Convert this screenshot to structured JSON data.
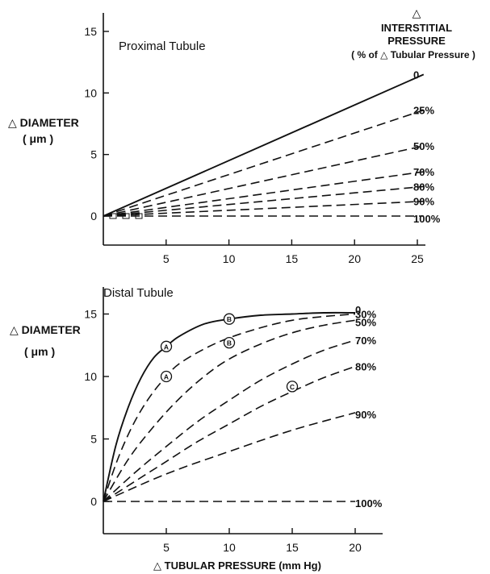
{
  "chart_data": [
    {
      "type": "line",
      "title": "Proximal Tubule",
      "ylabel_line1": "△ DIAMETER",
      "ylabel_line2": "( μm )",
      "xlabel": "",
      "xlim": [
        0,
        26
      ],
      "ylim": [
        0,
        16
      ],
      "x_ticks": [
        5,
        10,
        15,
        20,
        25
      ],
      "y_ticks": [
        0,
        5,
        10,
        15
      ],
      "grid": false,
      "legend_title": [
        "△",
        "INTERSTITIAL",
        "PRESSURE",
        "( % of △ Tubular Pressure )"
      ],
      "series": [
        {
          "name": "0",
          "style": "solid",
          "x": [
            0,
            25.5
          ],
          "y": [
            0,
            11.5
          ]
        },
        {
          "name": "25%",
          "style": "dashed",
          "x": [
            0,
            25.5
          ],
          "y": [
            0,
            8.6
          ]
        },
        {
          "name": "50%",
          "style": "dashed",
          "x": [
            0,
            25.5
          ],
          "y": [
            0,
            5.7
          ]
        },
        {
          "name": "70%",
          "style": "dashed",
          "x": [
            0,
            25.5
          ],
          "y": [
            0,
            3.6
          ]
        },
        {
          "name": "80%",
          "style": "dashed",
          "x": [
            0,
            25.5
          ],
          "y": [
            0,
            2.4
          ]
        },
        {
          "name": "90%",
          "style": "dashed",
          "x": [
            0,
            25.5
          ],
          "y": [
            0,
            1.2
          ]
        },
        {
          "name": "100%",
          "style": "dashed",
          "x": [
            0,
            25.5
          ],
          "y": [
            0,
            0
          ]
        }
      ]
    },
    {
      "type": "line",
      "title": "Distal Tubule",
      "ylabel_line1": "△ DIAMETER",
      "ylabel_line2": "( μm )",
      "xlabel": "△ TUBULAR PRESSURE (mm Hg)",
      "xlim": [
        0,
        22
      ],
      "ylim": [
        0,
        17
      ],
      "x_ticks": [
        5,
        10,
        15,
        20
      ],
      "y_ticks": [
        0,
        5,
        10,
        15
      ],
      "grid": false,
      "series": [
        {
          "name": "0",
          "style": "solid",
          "x": [
            0,
            1,
            2,
            3,
            4,
            5,
            6,
            8,
            10,
            12.5,
            15,
            17.5,
            20
          ],
          "y": [
            0,
            4.5,
            7.6,
            9.9,
            11.5,
            12.4,
            13.2,
            14.2,
            14.6,
            14.9,
            15.0,
            15.1,
            15.1
          ]
        },
        {
          "name": "30%",
          "style": "dashed",
          "x": [
            0,
            1,
            2,
            3,
            4,
            5,
            6,
            8,
            10,
            12.5,
            15,
            17.5,
            20
          ],
          "y": [
            0,
            3.0,
            5.4,
            7.3,
            8.8,
            10.0,
            11.0,
            12.2,
            13.1,
            13.9,
            14.5,
            14.8,
            15.0
          ]
        },
        {
          "name": "50%",
          "style": "dashed",
          "x": [
            0,
            2,
            4,
            6,
            8,
            10,
            12.5,
            15,
            17.5,
            20
          ],
          "y": [
            0,
            3.4,
            6.0,
            8.2,
            10.0,
            11.4,
            12.6,
            13.5,
            14.1,
            14.5
          ]
        },
        {
          "name": "70%",
          "style": "dashed",
          "x": [
            0,
            2.5,
            5,
            7.5,
            10,
            12.5,
            15,
            17.5,
            20
          ],
          "y": [
            0,
            2.3,
            4.4,
            6.4,
            8.1,
            9.7,
            11.0,
            12.1,
            12.9
          ]
        },
        {
          "name": "80%",
          "style": "dashed",
          "x": [
            0,
            2.5,
            5,
            7.5,
            10,
            12.5,
            15,
            17.5,
            20
          ],
          "y": [
            0,
            1.6,
            3.2,
            4.8,
            6.2,
            7.6,
            8.8,
            9.9,
            10.8
          ]
        },
        {
          "name": "90%",
          "style": "dashed",
          "x": [
            0,
            5,
            10,
            15,
            20
          ],
          "y": [
            0,
            2.2,
            4.0,
            5.7,
            7.1
          ]
        },
        {
          "name": "100%",
          "style": "dashed",
          "x": [
            0,
            20
          ],
          "y": [
            0,
            0
          ]
        }
      ],
      "annotations": [
        {
          "label": "A",
          "x": 5,
          "y": 12.4
        },
        {
          "label": "A",
          "x": 5,
          "y": 10.0
        },
        {
          "label": "B",
          "x": 10,
          "y": 14.6
        },
        {
          "label": "B",
          "x": 10,
          "y": 12.7
        },
        {
          "label": "C",
          "x": 15,
          "y": 9.2
        }
      ]
    }
  ]
}
